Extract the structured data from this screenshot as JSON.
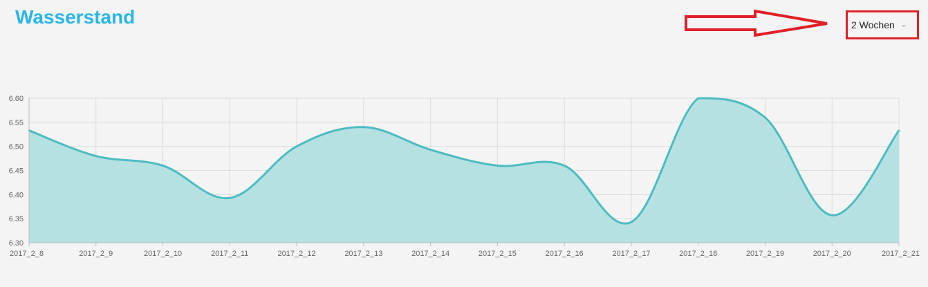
{
  "header": {
    "title": "Wasserstand"
  },
  "range_select": {
    "value": "2 Wochen"
  },
  "colors": {
    "title": "#29b6e8",
    "line": "#4bbcc0",
    "fill": "#b2dfe0",
    "grid": "#dcdcdc",
    "highlight": "#e02026"
  },
  "chart_data": {
    "type": "area",
    "title": "",
    "xlabel": "",
    "ylabel": "",
    "x": [
      "2017_2_8",
      "2017_2_9",
      "2017_2_10",
      "2017_2_11",
      "2017_2_12",
      "2017_2_13",
      "2017_2_14",
      "2017_2_15",
      "2017_2_16",
      "2017_2_17",
      "2017_2_18",
      "2017_2_19",
      "2017_2_20",
      "2017_2_21"
    ],
    "values": [
      6.533,
      6.48,
      6.46,
      6.393,
      6.5,
      6.54,
      6.493,
      6.46,
      6.46,
      6.343,
      6.6,
      6.56,
      6.357,
      6.533
    ],
    "y_ticks": [
      "6.60",
      "6.55",
      "6.50",
      "6.45",
      "6.40",
      "6.35",
      "6.30"
    ],
    "ylim": [
      6.3,
      6.6
    ],
    "grid": true,
    "legend": "none",
    "smooth": true
  }
}
